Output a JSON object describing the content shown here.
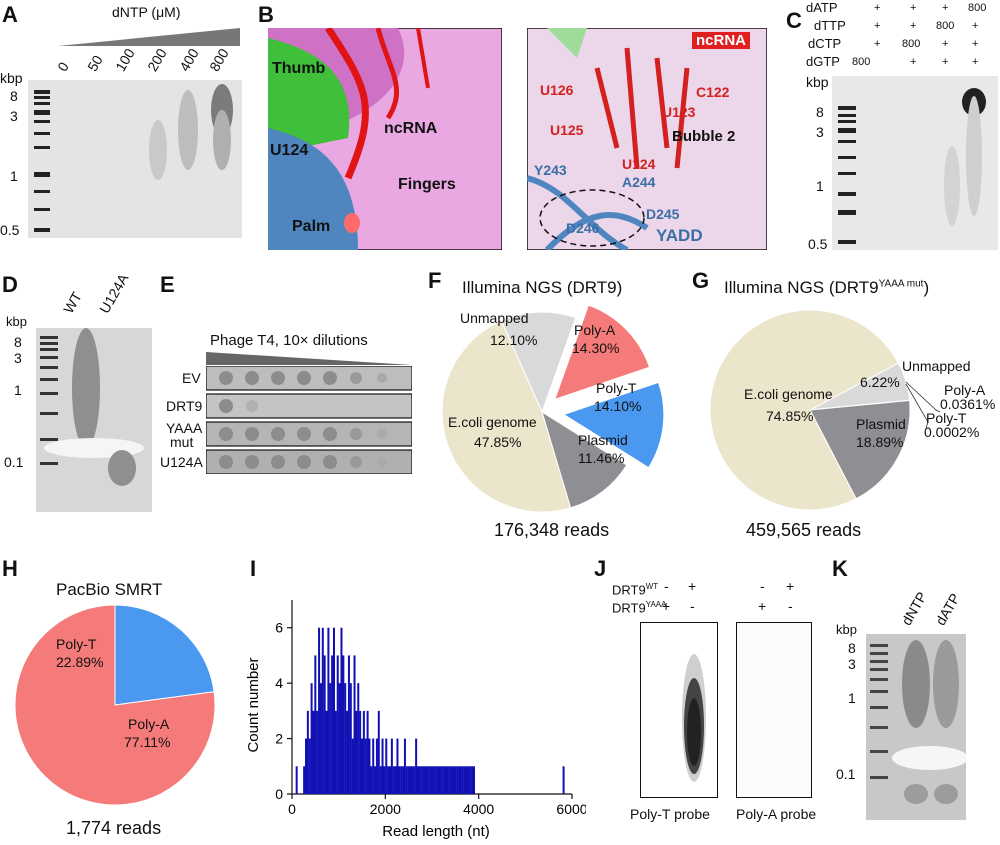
{
  "panels": {
    "A": {
      "letter": "A",
      "title": "dNTP (μM)",
      "unit": "kbp",
      "lanes": [
        "0",
        "50",
        "100",
        "200",
        "400",
        "800"
      ],
      "ladder": [
        "8",
        "3",
        "1",
        "0.5"
      ]
    },
    "B": {
      "letter": "B",
      "left": {
        "labels": [
          "Thumb",
          "ncRNA",
          "U124",
          "Fingers",
          "Palm"
        ]
      },
      "right": {
        "tag": "ncRNA",
        "bubble": "Bubble 2",
        "yadd": "YADD",
        "nts": [
          "U126",
          "C122",
          "U123",
          "U125",
          "U124"
        ],
        "res": [
          "Y243",
          "A244",
          "D245",
          "D246"
        ]
      }
    },
    "C": {
      "letter": "C",
      "unit": "kbp",
      "rows": [
        {
          "name": "dATP",
          "vals": [
            "+",
            "+",
            "+",
            "800"
          ]
        },
        {
          "name": "dTTP",
          "vals": [
            "+",
            "+",
            "800",
            "+"
          ]
        },
        {
          "name": "dCTP",
          "vals": [
            "+",
            "800",
            "+",
            "+"
          ]
        },
        {
          "name": "dGTP",
          "vals": [
            "800",
            "+",
            "+",
            "+"
          ]
        }
      ],
      "ladder": [
        "8",
        "3",
        "1",
        "0.5"
      ]
    },
    "D": {
      "letter": "D",
      "unit": "kbp",
      "lanes": [
        "WT",
        "U124A"
      ],
      "ladder": [
        "8",
        "3",
        "1",
        "0.1"
      ]
    },
    "E": {
      "letter": "E",
      "title": "Phage T4, 10× dilutions",
      "rows": [
        "EV",
        "DRT9",
        "YAAA",
        "mut",
        "U124A"
      ]
    },
    "F": {
      "letter": "F",
      "title": "Illumina NGS (DRT9)",
      "reads": "176,348 reads",
      "slices": [
        {
          "name": "Unmapped",
          "pct": "12.10%",
          "value": 12.1,
          "color": "#d9d9d9"
        },
        {
          "name": "Poly-A",
          "pct": "14.30%",
          "value": 14.3,
          "color": "#f57a7a"
        },
        {
          "name": "Poly-T",
          "pct": "14.10%",
          "value": 14.1,
          "color": "#4a98f0"
        },
        {
          "name": "Plasmid",
          "pct": "11.46%",
          "value": 11.46,
          "color": "#8f8f93"
        },
        {
          "name": "E.coli genome",
          "pct": "47.85%",
          "value": 47.85,
          "color": "#ebe5cc"
        }
      ]
    },
    "G": {
      "letter": "G",
      "title_main": "Illumina NGS (DRT9",
      "title_sup": "YAAA mut",
      "title_end": ")",
      "reads": "459,565 reads",
      "slices": [
        {
          "name": "Unmapped",
          "pct": "6.22%",
          "value": 6.22,
          "color": "#d9d9d9"
        },
        {
          "name": "Poly-A",
          "pct": "0.0361%",
          "value": 0.0361,
          "color": "#f57a7a"
        },
        {
          "name": "Poly-T",
          "pct": "0.0002%",
          "value": 0.0002,
          "color": "#4a98f0"
        },
        {
          "name": "Plasmid",
          "pct": "18.89%",
          "value": 18.89,
          "color": "#8f8f93"
        },
        {
          "name": "E.coli genome",
          "pct": "74.85%",
          "value": 74.85,
          "color": "#ebe5cc"
        }
      ]
    },
    "H": {
      "letter": "H",
      "title": "PacBio SMRT",
      "reads": "1,774 reads",
      "slices": [
        {
          "name": "Poly-T",
          "pct": "22.89%",
          "value": 22.89,
          "color": "#4a98f0"
        },
        {
          "name": "Poly-A",
          "pct": "77.11%",
          "value": 77.11,
          "color": "#f57a7a"
        }
      ]
    },
    "I": {
      "letter": "I"
    },
    "J": {
      "letter": "J",
      "row1": "DRT9",
      "row1_sup": "WT",
      "row2": "DRT9",
      "row2_sup": "YAAA",
      "signs_row1": [
        "-",
        "+",
        "-",
        "+"
      ],
      "signs_row2": [
        "+",
        "-",
        "+",
        "-"
      ],
      "probe1": "Poly-T probe",
      "probe2": "Poly-A probe"
    },
    "K": {
      "letter": "K",
      "unit": "kbp",
      "lanes": [
        "dNTP",
        "dATP"
      ],
      "ladder": [
        "8",
        "3",
        "1",
        "0.1"
      ]
    }
  },
  "chart_data": {
    "type": "bar",
    "xlabel": "Read length (nt)",
    "ylabel": "Count number",
    "xlim": [
      0,
      6000
    ],
    "ylim": [
      0,
      7
    ],
    "xticks": [
      0,
      2000,
      4000,
      6000
    ],
    "yticks": [
      0,
      2,
      4,
      6
    ],
    "x": [
      100,
      260,
      300,
      340,
      380,
      420,
      460,
      500,
      540,
      580,
      620,
      660,
      700,
      740,
      780,
      820,
      860,
      900,
      940,
      980,
      1020,
      1060,
      1100,
      1140,
      1180,
      1220,
      1260,
      1300,
      1340,
      1380,
      1420,
      1460,
      1500,
      1540,
      1580,
      1620,
      1660,
      1700,
      1740,
      1780,
      1820,
      1860,
      1900,
      1940,
      1980,
      2020,
      2060,
      2100,
      2140,
      2180,
      2220,
      2260,
      2300,
      2340,
      2380,
      2420,
      2460,
      2500,
      2540,
      2580,
      2620,
      2660,
      2700,
      2740,
      2780,
      2820,
      2860,
      2900,
      2940,
      2980,
      3020,
      3060,
      3100,
      3140,
      3180,
      3220,
      3260,
      3300,
      3340,
      3380,
      3420,
      3460,
      3500,
      3540,
      3580,
      3620,
      3660,
      3700,
      3740,
      3780,
      3820,
      3860,
      3900,
      5820
    ],
    "values": [
      1,
      1,
      2,
      3,
      2,
      4,
      3,
      5,
      3,
      6,
      4,
      6,
      5,
      3,
      6,
      4,
      5,
      6,
      3,
      5,
      4,
      6,
      5,
      4,
      3,
      5,
      4,
      2,
      5,
      3,
      4,
      3,
      2,
      3,
      2,
      3,
      2,
      1,
      2,
      1,
      2,
      3,
      1,
      2,
      1,
      2,
      1,
      1,
      2,
      1,
      1,
      2,
      1,
      1,
      1,
      2,
      1,
      1,
      1,
      1,
      1,
      2,
      1,
      1,
      1,
      1,
      1,
      1,
      1,
      1,
      1,
      1,
      1,
      1,
      1,
      1,
      1,
      1,
      1,
      1,
      1,
      1,
      1,
      1,
      1,
      1,
      1,
      1,
      1,
      1,
      1,
      1,
      1,
      1
    ]
  }
}
